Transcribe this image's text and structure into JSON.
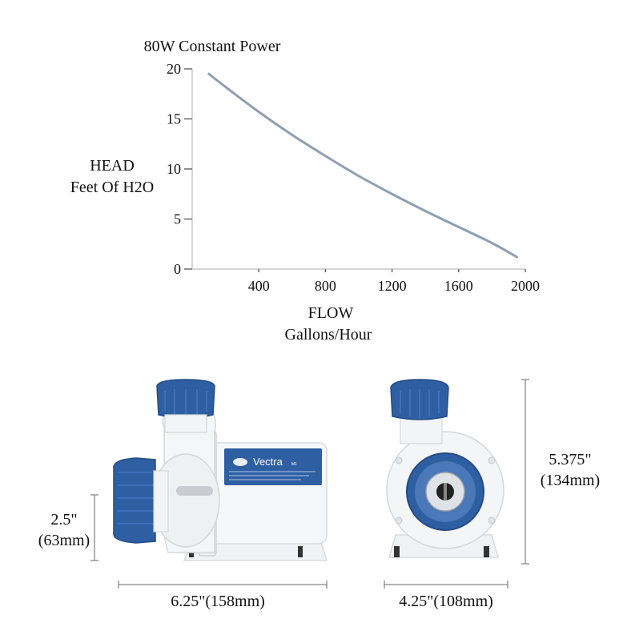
{
  "chart_data": {
    "type": "line",
    "title": "80W Constant Power",
    "ylabel": [
      "HEAD",
      "Feet Of H2O"
    ],
    "xlabel": [
      "FLOW",
      "Gallons/Hour"
    ],
    "xlim": [
      0,
      2000
    ],
    "ylim": [
      0,
      20
    ],
    "x_ticks": [
      400,
      800,
      1200,
      1600,
      2000
    ],
    "y_ticks": [
      0,
      5,
      10,
      15,
      20
    ],
    "grid": false,
    "series": [
      {
        "x": [
          100,
          200,
          400,
          600,
          800,
          1000,
          1200,
          1400,
          1600,
          1800,
          1950
        ],
        "y": [
          19.5,
          18.2,
          15.7,
          13.4,
          11.3,
          9.3,
          7.5,
          5.8,
          4.2,
          2.6,
          1.2
        ]
      }
    ]
  },
  "colors": {
    "curve": "#8e9fb3",
    "pump_blue": "#2f5fa3",
    "pump_white": "#f2f3f5",
    "dimension_line": "#888888"
  },
  "product": {
    "brand_label": "Vectra",
    "model_label": "M1"
  },
  "dimensions": {
    "side_height": [
      "2.5\"",
      "(63mm)"
    ],
    "side_width": "6.25\"(158mm)",
    "front_height": [
      "5.375\"",
      "(134mm)"
    ],
    "front_width": "4.25\"(108mm)"
  }
}
